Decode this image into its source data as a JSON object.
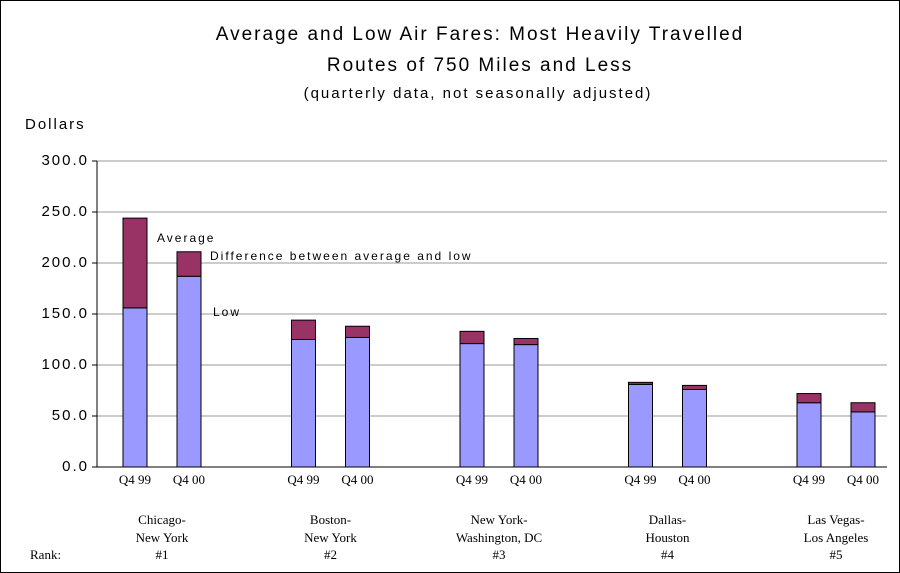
{
  "chart_data": {
    "type": "stacked_bar",
    "title": [
      "Average and Low Air Fares: Most Heavily Travelled",
      "Routes of 750 Miles and Less"
    ],
    "subtitle": "(quarterly data, not seasonally adjusted)",
    "y_label": "Dollars",
    "categories": [
      "Q4 99",
      "Q4 00",
      "Q4 99",
      "Q4 00",
      "Q4 99",
      "Q4 00",
      "Q4 99",
      "Q4 00",
      "Q4 99",
      "Q4 00"
    ],
    "groups": [
      {
        "label": [
          "Chicago-",
          "New York"
        ],
        "rank": "#1"
      },
      {
        "label": [
          "Boston-",
          "New York"
        ],
        "rank": "#2"
      },
      {
        "label": [
          "New York-",
          "Washington, DC"
        ],
        "rank": "#3"
      },
      {
        "label": [
          "Dallas-",
          "Houston"
        ],
        "rank": "#4"
      },
      {
        "label": [
          "Las Vegas-",
          "Los Angeles"
        ],
        "rank": "#5"
      }
    ],
    "rank_label": "Rank:",
    "series": [
      {
        "name": "Low",
        "color": "#9999ff",
        "values": [
          156,
          187,
          125,
          127,
          121,
          120,
          81,
          76,
          63,
          54
        ]
      },
      {
        "name": "Difference between average and low",
        "color": "#993366",
        "values": [
          88,
          24,
          19,
          11,
          12,
          6,
          2,
          4,
          9,
          9
        ]
      }
    ],
    "annotations": [
      "Average"
    ],
    "ylim": [
      0,
      300
    ],
    "yticks": [
      {
        "value": 0,
        "label": "0.0"
      },
      {
        "value": 50,
        "label": "50.0"
      },
      {
        "value": 100,
        "label": "100.0"
      },
      {
        "value": 150,
        "label": "150.0"
      },
      {
        "value": 200,
        "label": "200.0"
      },
      {
        "value": 250,
        "label": "250.0"
      },
      {
        "value": 300,
        "label": "300.0"
      }
    ],
    "grid": true
  }
}
